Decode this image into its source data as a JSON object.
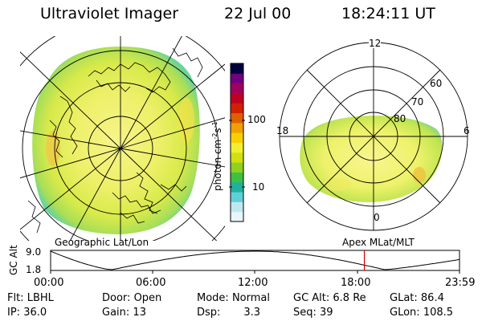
{
  "header": {
    "instrument": "Ultraviolet Imager",
    "date": "22 Jul 00",
    "time": "18:24:11 UT"
  },
  "geo_map": {
    "caption": "Geographic Lat/Lon"
  },
  "colorbar": {
    "label_main": "photon cm",
    "label_exp1": "-2",
    "label_s": "s",
    "label_exp2": "-1",
    "tick_high": "100",
    "tick_low": "10",
    "colors": [
      "#e8f6fa",
      "#bfe8ee",
      "#60d0d8",
      "#20b0a0",
      "#40c040",
      "#90d020",
      "#d0e010",
      "#f0f030",
      "#f8d000",
      "#f0a000",
      "#e06000",
      "#d02000",
      "#c00020",
      "#a00060",
      "#700080",
      "#000040"
    ]
  },
  "polar_map": {
    "caption": "Apex MLat/MLT",
    "mlt_labels": {
      "top": "12",
      "left": "18",
      "right": "6",
      "bottom": "0"
    },
    "lat_labels": [
      "60",
      "70",
      "80"
    ]
  },
  "altitude_plot": {
    "ylabel": "GC Alt",
    "yticks": [
      "9.0",
      "1.8"
    ],
    "xticks": [
      "00:00",
      "06:00",
      "12:00",
      "18:00",
      "23:59"
    ],
    "current_time_hours": 18.4
  },
  "status": {
    "row1": [
      {
        "label": "Flt:",
        "value": "LBHL"
      },
      {
        "label": "Door:",
        "value": "Open"
      },
      {
        "label": "Mode:",
        "value": "Normal"
      },
      {
        "label": "GC Alt:",
        "value": "6.8 Re"
      },
      {
        "label": "GLat:",
        "value": "86.4"
      }
    ],
    "row2": [
      {
        "label": "IP:",
        "value": "36.0"
      },
      {
        "label": "Gain:",
        "value": "13"
      },
      {
        "label": "Dsp:",
        "value": "3.3"
      },
      {
        "label": "Seq:",
        "value": "39"
      },
      {
        "label": "GLon:",
        "value": "108.5"
      }
    ]
  }
}
